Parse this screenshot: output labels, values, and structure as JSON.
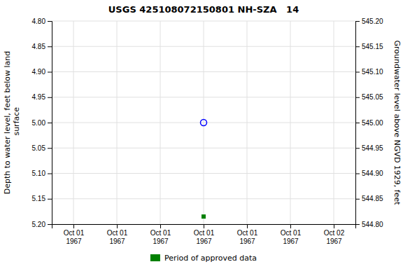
{
  "chart_data": {
    "type": "scatter",
    "title": "USGS 425108072150801 NH-SZA   14",
    "y_label": "Depth to water level, feet below land\n surface",
    "y2_label": "Groundwater level above NGVD 1929, feet",
    "categories": [
      "Oct 01\n1967",
      "Oct 01\n1967",
      "Oct 01\n1967",
      "Oct 01\n1967",
      "Oct 01\n1967",
      "Oct 01\n1967",
      "Oct 02\n1967"
    ],
    "series": [
      {
        "color": "blue",
        "marker": "circle-open",
        "values": [
          null,
          null,
          null,
          5.0,
          null,
          null,
          null
        ]
      },
      {
        "name": "Period of approved data",
        "color": "#008000",
        "marker": "square",
        "values": [
          null,
          null,
          null,
          5.185,
          null,
          null,
          null
        ]
      }
    ],
    "ylim": [
      5.2,
      4.8
    ],
    "yticks": [
      {
        "value": 4.8,
        "label": "4.80"
      },
      4.85,
      {
        "value": 4.9,
        "label": "4.90"
      },
      4.95,
      {
        "value": 5.0,
        "label": "5.00"
      },
      5.05,
      {
        "value": 5.1,
        "label": "5.10"
      },
      5.15,
      {
        "value": 5.2,
        "label": "5.20"
      }
    ],
    "y2lim": [
      544.8,
      545.2
    ],
    "y2ticks": [
      {
        "value": 545.2,
        "label": "545.20"
      },
      545.15,
      {
        "value": 545.1,
        "label": "545.10"
      },
      545.05,
      {
        "value": 545.0,
        "label": "545.00"
      },
      544.95,
      {
        "value": 544.9,
        "label": "544.90"
      },
      544.85,
      {
        "value": 544.8,
        "label": "544.80"
      }
    ],
    "grid": true,
    "legend": "bottom"
  }
}
